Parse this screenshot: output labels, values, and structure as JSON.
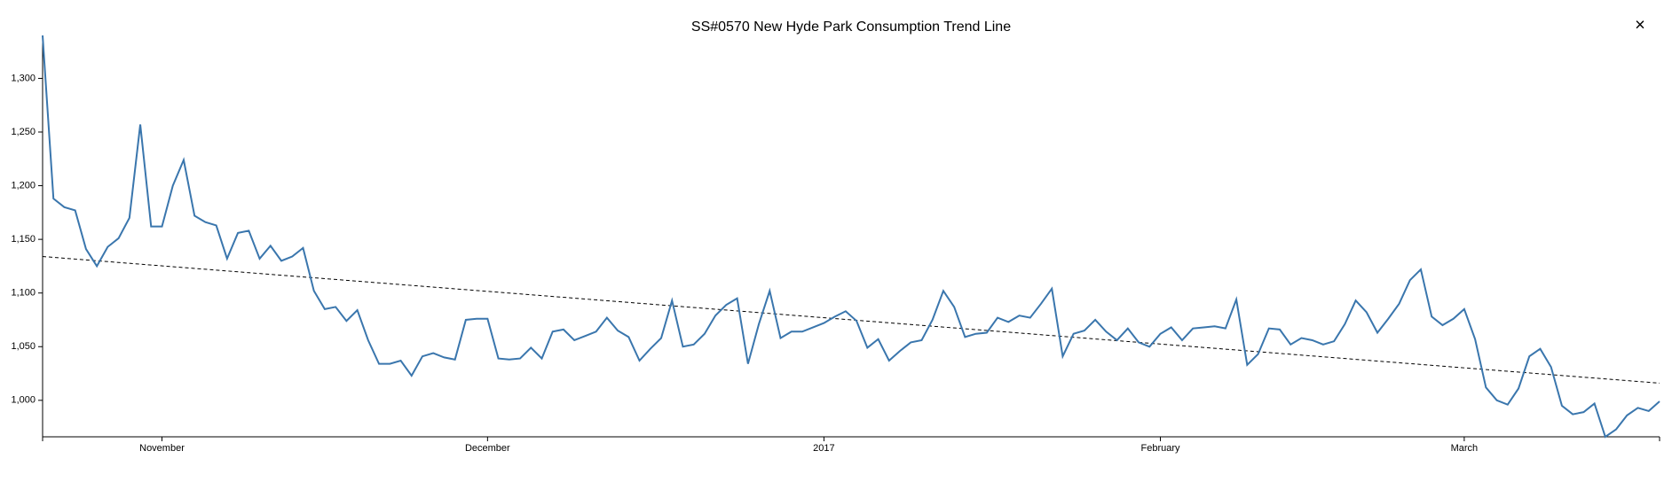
{
  "chart_data": {
    "type": "line",
    "title": "SS#0570 New Hyde Park Consumption Trend Line",
    "close_label": "×",
    "x": [
      0,
      1,
      2,
      3,
      4,
      5,
      6,
      7,
      8,
      9,
      10,
      11,
      12,
      13,
      14,
      15,
      16,
      17,
      18,
      19,
      20,
      21,
      22,
      23,
      24,
      25,
      26,
      27,
      28,
      29,
      30,
      31,
      32,
      33,
      34,
      35,
      36,
      37,
      38,
      39,
      40,
      41,
      42,
      43,
      44,
      45,
      46,
      47,
      48,
      49,
      50,
      51,
      52,
      53,
      54,
      55,
      56,
      57,
      58,
      59,
      60,
      61,
      62,
      63,
      64,
      65,
      66,
      67,
      68,
      69,
      70,
      71,
      72,
      73,
      74,
      75,
      76,
      77,
      78,
      79,
      80,
      81,
      82,
      83,
      84,
      85,
      86,
      87,
      88,
      89,
      90,
      91,
      92,
      93,
      94,
      95,
      96,
      97,
      98,
      99,
      100,
      101,
      102,
      103,
      104,
      105,
      106,
      107,
      108,
      109,
      110,
      111,
      112,
      113,
      114,
      115,
      116,
      117,
      118,
      119,
      120,
      121,
      122,
      123,
      124,
      125,
      126,
      127,
      128,
      129,
      130,
      131,
      132,
      133,
      134,
      135,
      136,
      137,
      138,
      139,
      140,
      141,
      142,
      143,
      144,
      145,
      146,
      147,
      148,
      149
    ],
    "series": [
      {
        "color": "#3a76ad",
        "values": [
          1340,
          1188,
          1180,
          1177,
          1141,
          1125,
          1143,
          1151,
          1170,
          1257,
          1162,
          1162,
          1200,
          1224,
          1172,
          1166,
          1163,
          1132,
          1156,
          1158,
          1132,
          1144,
          1130,
          1134,
          1142,
          1102,
          1085,
          1087,
          1074,
          1084,
          1056,
          1034,
          1034,
          1037,
          1023,
          1041,
          1044,
          1040,
          1038,
          1075,
          1076,
          1076,
          1039,
          1038,
          1039,
          1049,
          1039,
          1064,
          1066,
          1056,
          1060,
          1064,
          1077,
          1065,
          1059,
          1037,
          1048,
          1058,
          1093,
          1050,
          1052,
          1062,
          1079,
          1089,
          1095,
          1034,
          1071,
          1102,
          1058,
          1064,
          1064,
          1068,
          1072,
          1078,
          1083,
          1074,
          1049,
          1057,
          1037,
          1046,
          1054,
          1056,
          1075,
          1102,
          1087,
          1059,
          1062,
          1063,
          1077,
          1073,
          1079,
          1077,
          1090,
          1104,
          1041,
          1062,
          1065,
          1075,
          1064,
          1056,
          1067,
          1054,
          1050,
          1062,
          1068,
          1056,
          1067,
          1068,
          1069,
          1067,
          1094,
          1033,
          1043,
          1067,
          1066,
          1052,
          1058,
          1056,
          1052,
          1055,
          1071,
          1093,
          1082,
          1063,
          1076,
          1090,
          1112,
          1122,
          1078,
          1070,
          1076,
          1085,
          1057,
          1012,
          1000,
          996,
          1011,
          1041,
          1048,
          1031,
          995,
          987,
          989,
          997,
          966,
          973,
          986,
          993,
          990,
          999
        ]
      }
    ],
    "trend_line": {
      "x": [
        0,
        149
      ],
      "values": [
        1134,
        1016
      ],
      "color": "#000000",
      "dashed": true
    },
    "xlim": [
      0,
      149
    ],
    "xticks": [
      {
        "value": 11,
        "label": "November"
      },
      {
        "value": 41,
        "label": "December"
      },
      {
        "value": 72,
        "label": "2017"
      },
      {
        "value": 103,
        "label": "February"
      },
      {
        "value": 131,
        "label": "March"
      }
    ],
    "ylim": [
      966,
      1340
    ],
    "yticks": [
      {
        "value": 1000,
        "label": "1,000"
      },
      {
        "value": 1050,
        "label": "1,050"
      },
      {
        "value": 1100,
        "label": "1,100"
      },
      {
        "value": 1150,
        "label": "1,150"
      },
      {
        "value": 1200,
        "label": "1,200"
      },
      {
        "value": 1250,
        "label": "1,250"
      },
      {
        "value": 1300,
        "label": "1,300"
      }
    ],
    "grid": false
  }
}
